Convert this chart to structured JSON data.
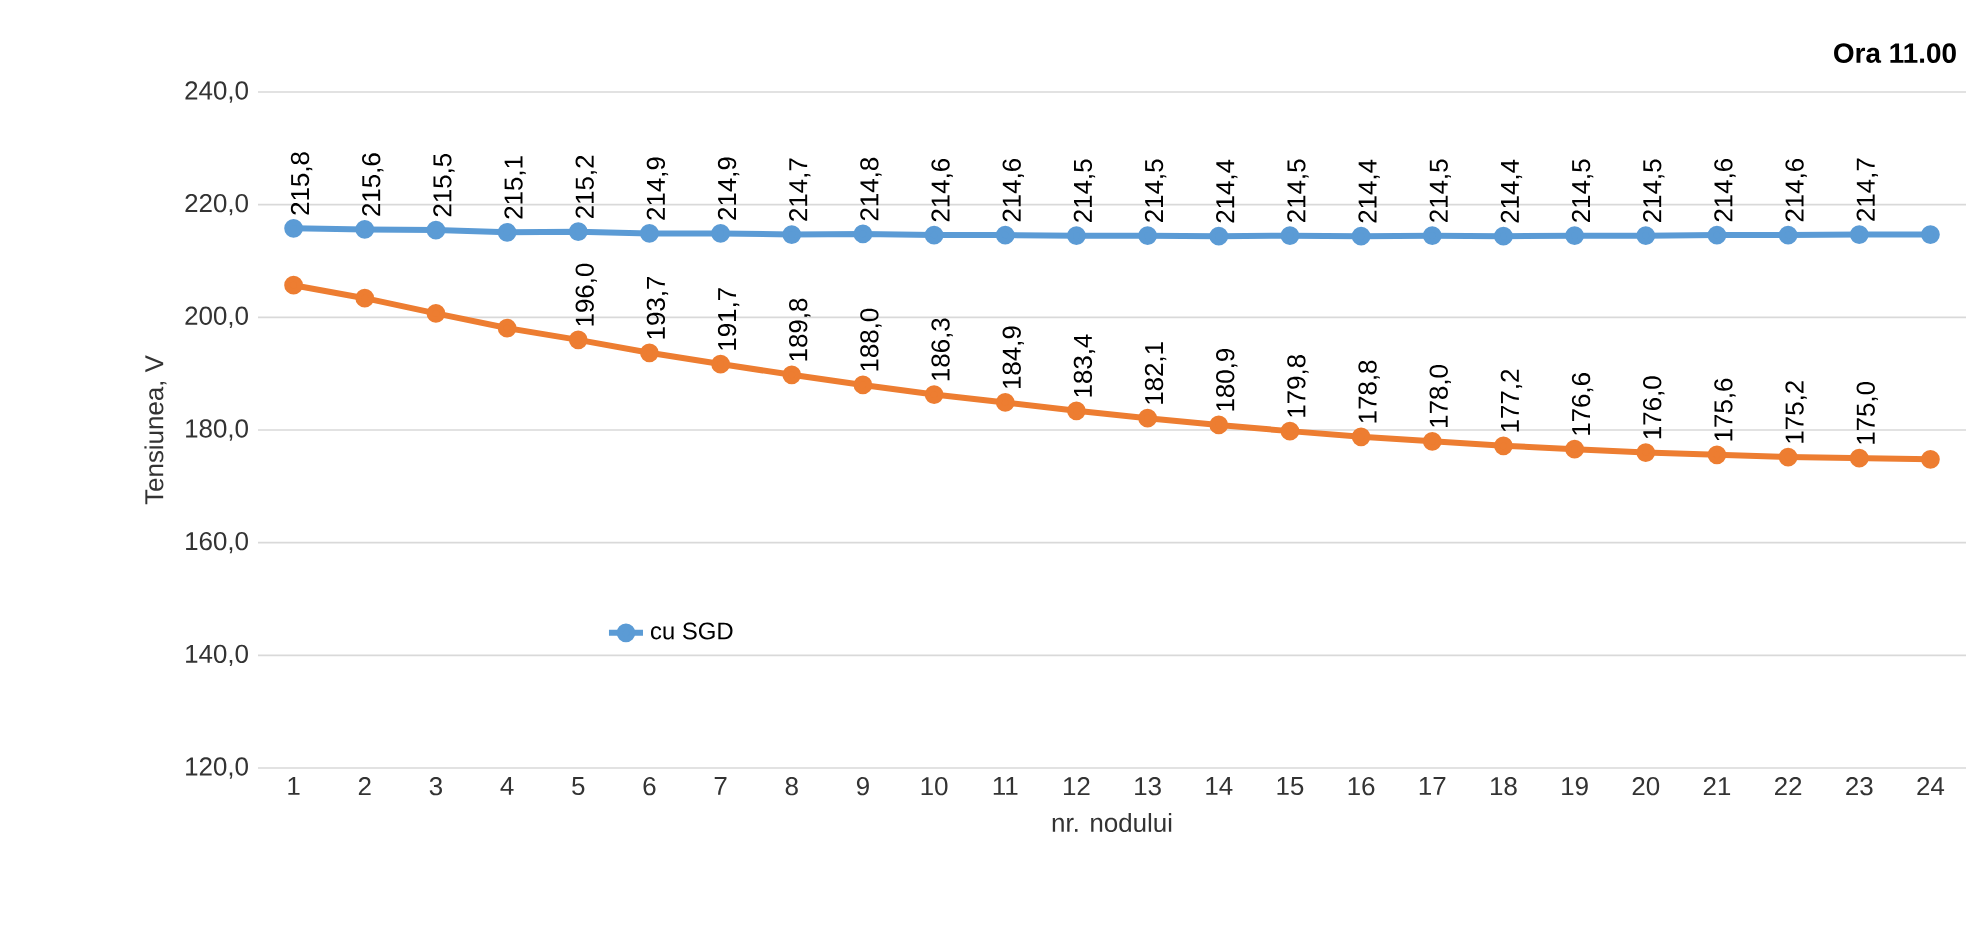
{
  "chart_data": {
    "type": "line",
    "title": "Ora 11.00",
    "xlabel": "nr. nodului",
    "ylabel": "Tensiunea, V",
    "categories": [
      "1",
      "2",
      "3",
      "4",
      "5",
      "6",
      "7",
      "8",
      "9",
      "10",
      "11",
      "12",
      "13",
      "14",
      "15",
      "16",
      "17",
      "18",
      "19",
      "20",
      "21",
      "22",
      "23",
      "24"
    ],
    "series": [
      {
        "name": "cu SGD",
        "color": "#5b9bd5",
        "values": [
          215.8,
          215.6,
          215.5,
          215.1,
          215.2,
          214.9,
          214.9,
          214.7,
          214.8,
          214.6,
          214.6,
          214.5,
          214.5,
          214.4,
          214.5,
          214.4,
          214.5,
          214.4,
          214.5,
          214.5,
          214.6,
          214.6,
          214.7,
          214.7
        ],
        "value_labels": [
          "215,8",
          "215,6",
          "215,5",
          "215,1",
          "215,2",
          "214,9",
          "214,9",
          "214,7",
          "214,8",
          "214,6",
          "214,6",
          "214,5",
          "214,5",
          "214,4",
          "214,5",
          "214,4",
          "214,5",
          "214,4",
          "214,5",
          "214,5",
          "214,6",
          "214,6",
          "214,7",
          null
        ]
      },
      {
        "color": "#ed7d31",
        "values": [
          205.7,
          203.4,
          200.7,
          198.1,
          196.0,
          193.7,
          191.7,
          189.8,
          188.0,
          186.3,
          184.9,
          183.4,
          182.1,
          180.9,
          179.8,
          178.8,
          178.0,
          177.2,
          176.6,
          176.0,
          175.6,
          175.2,
          175.0,
          174.8
        ],
        "value_labels": [
          null,
          null,
          null,
          null,
          "196,0",
          "193,7",
          "191,7",
          "189,8",
          "188,0",
          "186,3",
          "184,9",
          "183,4",
          "182,1",
          "180,9",
          "179,8",
          "178,8",
          "178,0",
          "177,2",
          "176,6",
          "176,0",
          "175,6",
          "175,2",
          "175,0",
          null
        ]
      }
    ],
    "ylim": [
      120,
      240
    ],
    "yticks": [
      {
        "value": 120,
        "label": "120,0"
      },
      {
        "value": 140,
        "label": "140,0"
      },
      {
        "value": 160,
        "label": "160,0"
      },
      {
        "value": 180,
        "label": "180,0"
      },
      {
        "value": 200,
        "label": "200,0"
      },
      {
        "value": 220,
        "label": "220,0"
      },
      {
        "value": 240,
        "label": "240,0"
      }
    ],
    "grid": "y",
    "legend": "left",
    "marker": "circle",
    "line_style": "solid"
  }
}
